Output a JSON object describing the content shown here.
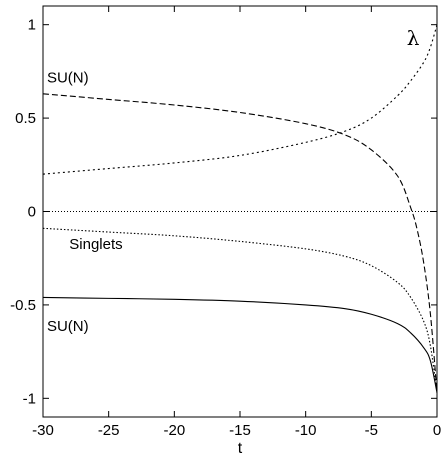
{
  "chart_data": {
    "type": "line",
    "title": "",
    "xlabel": "t",
    "ylabel": "",
    "xlim": [
      -30,
      0
    ],
    "ylim": [
      -1.1,
      1.1
    ],
    "grid": false,
    "x_ticks": [
      -30,
      -25,
      -20,
      -15,
      -10,
      -5,
      0
    ],
    "y_ticks": [
      -1,
      -0.5,
      0,
      0.5,
      1
    ],
    "x_tick_labels": [
      "-30",
      "-25",
      "-20",
      "-15",
      "-10",
      "-5",
      "0"
    ],
    "y_tick_labels": [
      "-1",
      "-0.5",
      "0",
      "0.5",
      "1"
    ],
    "series": [
      {
        "style": "dotted-fine",
        "x": [
          -30,
          -25,
          -20,
          -15,
          -10,
          -7,
          -5,
          -3,
          -2,
          -1,
          -0.5,
          0
        ],
        "y": [
          0.2,
          0.23,
          0.26,
          0.3,
          0.37,
          0.43,
          0.5,
          0.62,
          0.7,
          0.8,
          0.88,
          1.0
        ]
      },
      {
        "style": "dashed",
        "x": [
          -30,
          -25,
          -20,
          -15,
          -10,
          -7,
          -5,
          -3,
          -2,
          -1.5,
          -1,
          -0.5,
          0
        ],
        "y": [
          0.63,
          0.6,
          0.57,
          0.53,
          0.47,
          0.41,
          0.33,
          0.19,
          0.02,
          -0.1,
          -0.28,
          -0.55,
          -0.97
        ]
      },
      {
        "style": "dotted-coarse",
        "x": [
          -30,
          -25,
          -20,
          -15,
          -10,
          -7,
          -5,
          -3,
          -2,
          -1,
          -0.5,
          0
        ],
        "y": [
          -0.09,
          -0.11,
          -0.13,
          -0.16,
          -0.2,
          -0.24,
          -0.29,
          -0.38,
          -0.46,
          -0.59,
          -0.72,
          -0.97
        ]
      },
      {
        "style": "solid",
        "x": [
          -30,
          -25,
          -20,
          -15,
          -10,
          -7,
          -5,
          -3,
          -2,
          -1,
          -0.5,
          0
        ],
        "y": [
          -0.46,
          -0.465,
          -0.47,
          -0.48,
          -0.5,
          -0.52,
          -0.55,
          -0.6,
          -0.65,
          -0.73,
          -0.8,
          -0.97
        ]
      }
    ],
    "annotations": [
      {
        "text": "SU(N)",
        "x": -29.7,
        "y": 0.69
      },
      {
        "text": "Singlets",
        "x": -28.0,
        "y": -0.2
      },
      {
        "text": "SU(N)",
        "x": -29.7,
        "y": -0.64
      },
      {
        "text": "λ",
        "x": -2.3,
        "y": 0.89,
        "serif": true
      }
    ]
  }
}
